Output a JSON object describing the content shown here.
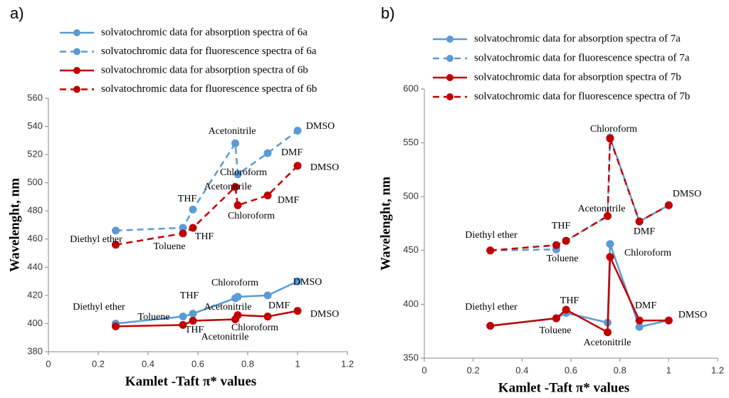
{
  "chart_data": [
    {
      "type": "line",
      "panel_label": "a)",
      "xlabel": "Kamlet -Taft π* values",
      "ylabel": "Wavelenght, nm",
      "x": [
        0.27,
        0.54,
        0.58,
        0.75,
        0.76,
        0.88,
        1.0
      ],
      "xlim": [
        0,
        1.2
      ],
      "xticks": [
        0,
        0.2,
        0.4,
        0.6,
        0.8,
        1,
        1.2
      ],
      "ylim": [
        380,
        560
      ],
      "yticks": [
        380,
        400,
        420,
        440,
        460,
        480,
        500,
        520,
        540,
        560
      ],
      "series": [
        {
          "name": "solvatochromic data for absorption spectra of 6a",
          "color": "#5b9bd5",
          "linestyle": "solid",
          "values": [
            400,
            405,
            407,
            418,
            419,
            420,
            430
          ]
        },
        {
          "name": "solvatochromic data for fluorescence spectra of 6a",
          "color": "#5b9bd5",
          "linestyle": "dashed",
          "values": [
            466,
            468,
            481,
            528,
            506,
            521,
            537
          ]
        },
        {
          "name": "solvatochromic data for absorption spectra of 6b",
          "color": "#c00000",
          "linestyle": "solid",
          "values": [
            398,
            399,
            402,
            403,
            406,
            405,
            409
          ]
        },
        {
          "name": "solvatochromic data for fluorescence spectra of 6b",
          "color": "#c00000",
          "linestyle": "dashed",
          "values": [
            456,
            464,
            468,
            497,
            484,
            491,
            512
          ]
        }
      ],
      "annotations": [
        "Diethyl ether",
        "Toluene",
        "THF",
        "THF",
        "Acetonitrile",
        "Acetonitrile",
        "Chloroform",
        "Chloroform",
        "DMF",
        "DMSO",
        "DMSO",
        "Diethyl ether",
        "Toluene",
        "THF",
        "THF",
        "Acetonitrile",
        "Chloroform",
        "Acetonitrile",
        "Chloroform",
        "DMF",
        "DMF",
        "DMSO",
        "DMSO"
      ]
    },
    {
      "type": "line",
      "panel_label": "b)",
      "xlabel": "Kamlet -Taft π* values",
      "ylabel": "Wavelenght, nm",
      "x": [
        0.27,
        0.54,
        0.58,
        0.75,
        0.76,
        0.88,
        1.0
      ],
      "xlim": [
        0,
        1.2
      ],
      "xticks": [
        0,
        0.2,
        0.4,
        0.6,
        0.8,
        1,
        1.2
      ],
      "ylim": [
        350,
        600
      ],
      "yticks": [
        350,
        400,
        450,
        500,
        550,
        600
      ],
      "series": [
        {
          "name": "solvatochromic data for absorption spectra of 7a",
          "color": "#5b9bd5",
          "linestyle": "solid",
          "values": [
            380,
            387,
            392,
            383,
            456,
            379,
            385
          ]
        },
        {
          "name": "solvatochromic data for fluorescence spectra of 7a",
          "color": "#5b9bd5",
          "linestyle": "dashed",
          "values": [
            450,
            451,
            459,
            482,
            555,
            477,
            492
          ]
        },
        {
          "name": "solvatochromic data for absorption spectra of 7b",
          "color": "#c00000",
          "linestyle": "solid",
          "values": [
            380,
            387,
            395,
            374,
            444,
            385,
            385
          ]
        },
        {
          "name": "solvatochromic data for fluorescence spectra of 7b",
          "color": "#c00000",
          "linestyle": "dashed",
          "values": [
            450,
            455,
            459,
            482,
            554,
            477,
            492
          ]
        }
      ],
      "annotations": [
        "Diethyl ether",
        "Toluene",
        "THF",
        "Acetonitrile",
        "Chloroform",
        "DMF",
        "DMSO",
        "Diethyl ether",
        "Toluene",
        "THF",
        "Acetonitrile",
        "Chloroform",
        "DMF",
        "DMSO"
      ]
    }
  ]
}
